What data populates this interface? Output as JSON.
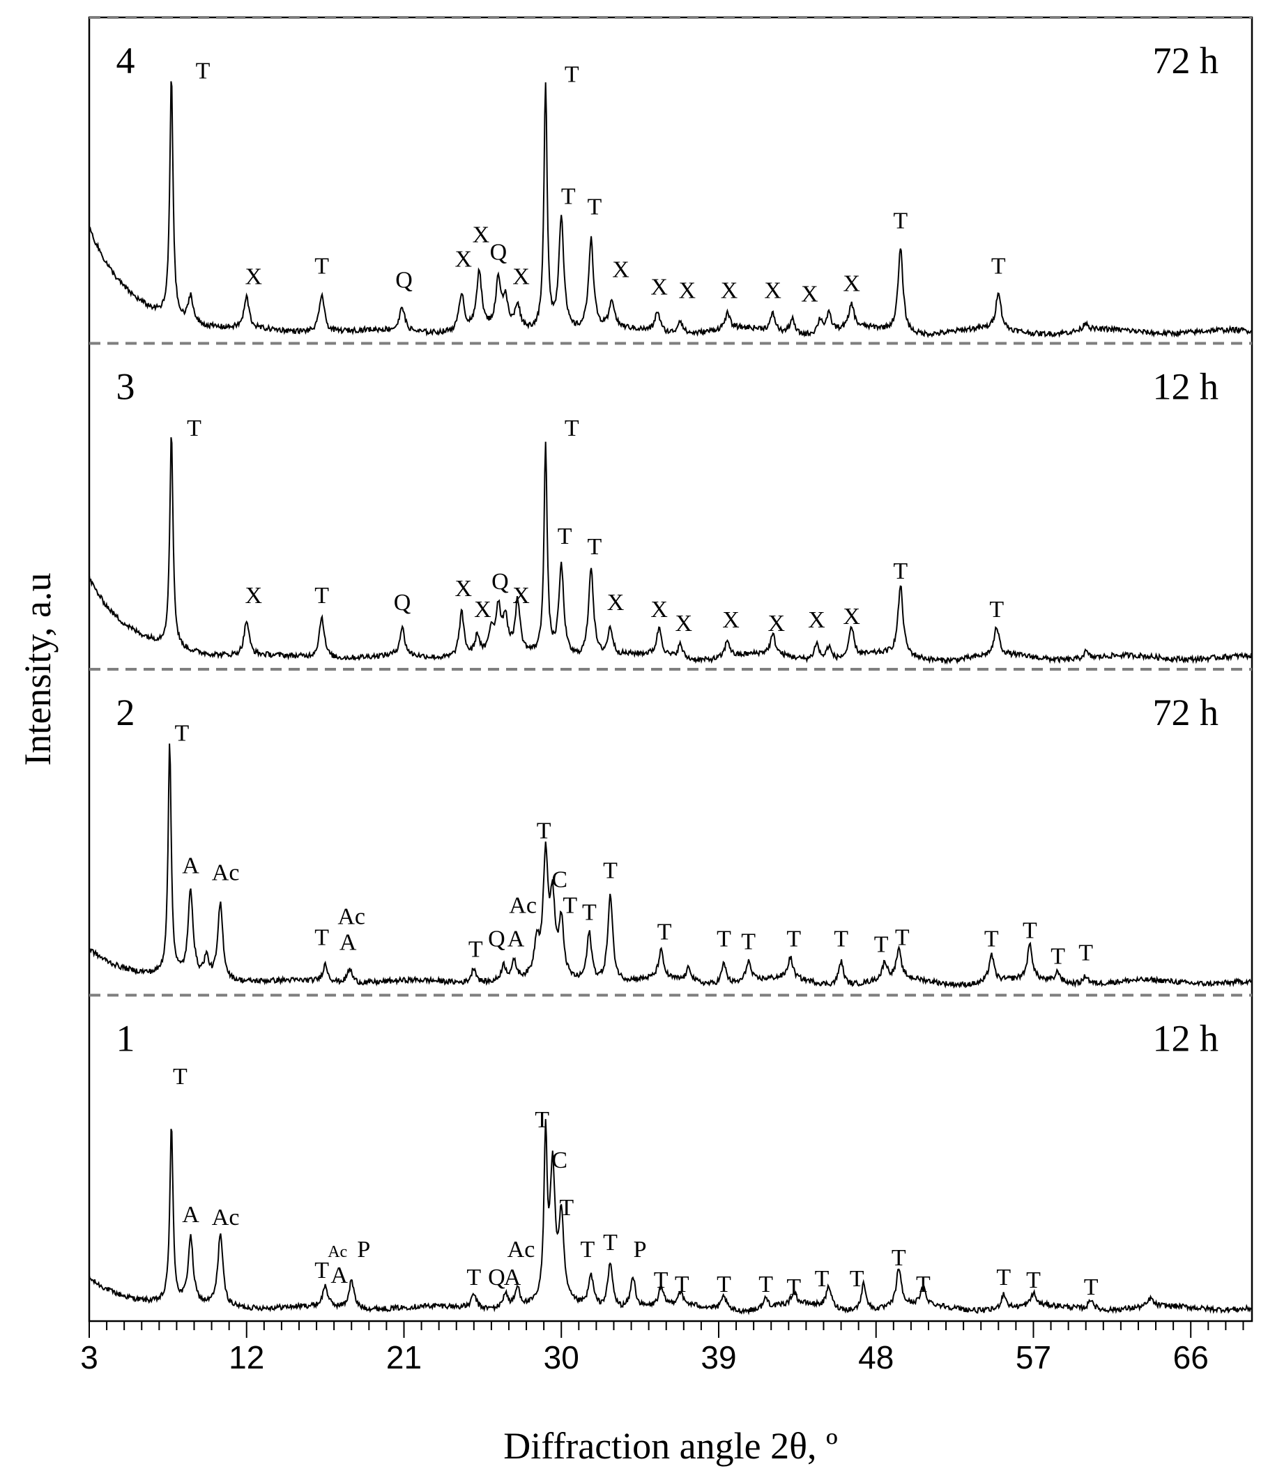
{
  "chart_data": {
    "type": "line",
    "title": "",
    "xlabel": "Diffraction angle 2θ, º",
    "ylabel": "Intensity, a.u",
    "xlim": [
      3,
      69.5
    ],
    "x_ticks": [
      3,
      12,
      21,
      30,
      39,
      48,
      57,
      66
    ],
    "x_tick_labels": [
      "3",
      "12",
      "21",
      "30",
      "39",
      "48",
      "57",
      "66"
    ],
    "minor_tick_step": 1,
    "grid": false,
    "panel_separator": "dashed",
    "series": [
      {
        "label": "1",
        "time": "12 h",
        "baseline": 0.19,
        "decay_amplitude": 0.42,
        "peaks": [
          {
            "x": 7.7,
            "h": 2.55
          },
          {
            "x": 8.8,
            "h": 0.95
          },
          {
            "x": 10.5,
            "h": 1.05
          },
          {
            "x": 16.5,
            "h": 0.3
          },
          {
            "x": 18.0,
            "h": 0.4
          },
          {
            "x": 25.0,
            "h": 0.2
          },
          {
            "x": 26.8,
            "h": 0.22
          },
          {
            "x": 27.5,
            "h": 0.28
          },
          {
            "x": 29.1,
            "h": 2.35
          },
          {
            "x": 29.5,
            "h": 1.9
          },
          {
            "x": 30.0,
            "h": 1.2
          },
          {
            "x": 31.7,
            "h": 0.45
          },
          {
            "x": 32.8,
            "h": 0.65
          },
          {
            "x": 34.1,
            "h": 0.45
          },
          {
            "x": 35.7,
            "h": 0.25
          },
          {
            "x": 36.8,
            "h": 0.18
          },
          {
            "x": 39.3,
            "h": 0.2
          },
          {
            "x": 41.7,
            "h": 0.15
          },
          {
            "x": 43.3,
            "h": 0.18
          },
          {
            "x": 45.3,
            "h": 0.3
          },
          {
            "x": 47.3,
            "h": 0.4
          },
          {
            "x": 49.3,
            "h": 0.55
          },
          {
            "x": 50.7,
            "h": 0.25
          },
          {
            "x": 55.3,
            "h": 0.22
          },
          {
            "x": 57.0,
            "h": 0.18
          },
          {
            "x": 60.3,
            "h": 0.15
          },
          {
            "x": 63.7,
            "h": 0.12
          }
        ],
        "annotations": [
          {
            "t": "T",
            "x": 8.2,
            "y": 3.4,
            "s": 34
          },
          {
            "t": "A",
            "x": 8.8,
            "y": 1.42,
            "s": 34
          },
          {
            "t": "Ac",
            "x": 10.8,
            "y": 1.38,
            "s": 34
          },
          {
            "t": "T",
            "x": 16.3,
            "y": 0.62,
            "s": 34
          },
          {
            "t": "Ac",
            "x": 17.2,
            "y": 0.92,
            "s": 24
          },
          {
            "t": "A",
            "x": 17.3,
            "y": 0.55,
            "s": 34
          },
          {
            "t": "P",
            "x": 18.7,
            "y": 0.92,
            "s": 34
          },
          {
            "t": "T",
            "x": 25.0,
            "y": 0.52,
            "s": 34
          },
          {
            "t": "Q",
            "x": 26.3,
            "y": 0.52,
            "s": 34
          },
          {
            "t": "Ac",
            "x": 27.7,
            "y": 0.92,
            "s": 34
          },
          {
            "t": "A",
            "x": 27.2,
            "y": 0.52,
            "s": 34
          },
          {
            "t": "T",
            "x": 28.9,
            "y": 2.78,
            "s": 34
          },
          {
            "t": "C",
            "x": 29.9,
            "y": 2.2,
            "s": 34
          },
          {
            "t": "T",
            "x": 30.3,
            "y": 1.52,
            "s": 34
          },
          {
            "t": "T",
            "x": 31.5,
            "y": 0.92,
            "s": 34
          },
          {
            "t": "T",
            "x": 32.8,
            "y": 1.02,
            "s": 34
          },
          {
            "t": "P",
            "x": 34.5,
            "y": 0.92,
            "s": 34
          },
          {
            "t": "T",
            "x": 35.7,
            "y": 0.48,
            "s": 34
          },
          {
            "t": "T",
            "x": 36.9,
            "y": 0.42,
            "s": 34
          },
          {
            "t": "T",
            "x": 39.3,
            "y": 0.42,
            "s": 34
          },
          {
            "t": "T",
            "x": 41.7,
            "y": 0.42,
            "s": 34
          },
          {
            "t": "T",
            "x": 43.3,
            "y": 0.38,
            "s": 34
          },
          {
            "t": "T",
            "x": 44.9,
            "y": 0.5,
            "s": 34
          },
          {
            "t": "T",
            "x": 46.9,
            "y": 0.5,
            "s": 34
          },
          {
            "t": "T",
            "x": 49.3,
            "y": 0.8,
            "s": 34
          },
          {
            "t": "T",
            "x": 50.7,
            "y": 0.42,
            "s": 34
          },
          {
            "t": "T",
            "x": 55.3,
            "y": 0.52,
            "s": 34
          },
          {
            "t": "T",
            "x": 57.0,
            "y": 0.48,
            "s": 34
          },
          {
            "t": "T",
            "x": 60.3,
            "y": 0.38,
            "s": 34
          }
        ]
      },
      {
        "label": "2",
        "time": "72 h",
        "baseline": 0.19,
        "decay_amplitude": 0.48,
        "peaks": [
          {
            "x": 7.6,
            "h": 3.3
          },
          {
            "x": 8.8,
            "h": 1.25
          },
          {
            "x": 9.7,
            "h": 0.3
          },
          {
            "x": 10.5,
            "h": 1.1
          },
          {
            "x": 16.5,
            "h": 0.25
          },
          {
            "x": 17.9,
            "h": 0.2
          },
          {
            "x": 25.0,
            "h": 0.22
          },
          {
            "x": 26.7,
            "h": 0.22
          },
          {
            "x": 27.3,
            "h": 0.25
          },
          {
            "x": 28.6,
            "h": 0.5
          },
          {
            "x": 29.1,
            "h": 1.7
          },
          {
            "x": 29.5,
            "h": 1.05
          },
          {
            "x": 30.0,
            "h": 0.8
          },
          {
            "x": 31.6,
            "h": 0.7
          },
          {
            "x": 32.8,
            "h": 1.25
          },
          {
            "x": 35.7,
            "h": 0.4
          },
          {
            "x": 37.3,
            "h": 0.2
          },
          {
            "x": 39.3,
            "h": 0.3
          },
          {
            "x": 40.7,
            "h": 0.3
          },
          {
            "x": 43.1,
            "h": 0.3
          },
          {
            "x": 46.0,
            "h": 0.35
          },
          {
            "x": 48.5,
            "h": 0.25
          },
          {
            "x": 49.3,
            "h": 0.4
          },
          {
            "x": 54.6,
            "h": 0.4
          },
          {
            "x": 56.8,
            "h": 0.5
          },
          {
            "x": 58.4,
            "h": 0.15
          },
          {
            "x": 60.0,
            "h": 0.12
          }
        ],
        "annotations": [
          {
            "t": "T",
            "x": 8.3,
            "y": 3.65,
            "s": 34
          },
          {
            "t": "A",
            "x": 8.8,
            "y": 1.75,
            "s": 34
          },
          {
            "t": "Ac",
            "x": 10.8,
            "y": 1.65,
            "s": 34
          },
          {
            "t": "T",
            "x": 16.3,
            "y": 0.72,
            "s": 34
          },
          {
            "t": "Ac",
            "x": 18.0,
            "y": 1.02,
            "s": 34
          },
          {
            "t": "A",
            "x": 17.8,
            "y": 0.65,
            "s": 34
          },
          {
            "t": "T",
            "x": 25.1,
            "y": 0.55,
            "s": 34
          },
          {
            "t": "Q",
            "x": 26.3,
            "y": 0.7,
            "s": 34
          },
          {
            "t": "Ac",
            "x": 27.8,
            "y": 1.18,
            "s": 34
          },
          {
            "t": "A",
            "x": 27.4,
            "y": 0.7,
            "s": 34
          },
          {
            "t": "T",
            "x": 29.0,
            "y": 2.25,
            "s": 34
          },
          {
            "t": "C",
            "x": 29.9,
            "y": 1.55,
            "s": 34
          },
          {
            "t": "T",
            "x": 30.5,
            "y": 1.18,
            "s": 34
          },
          {
            "t": "T",
            "x": 31.6,
            "y": 1.08,
            "s": 34
          },
          {
            "t": "T",
            "x": 32.8,
            "y": 1.68,
            "s": 34
          },
          {
            "t": "T",
            "x": 35.9,
            "y": 0.8,
            "s": 34
          },
          {
            "t": "T",
            "x": 39.3,
            "y": 0.7,
            "s": 34
          },
          {
            "t": "T",
            "x": 40.7,
            "y": 0.66,
            "s": 34
          },
          {
            "t": "T",
            "x": 43.3,
            "y": 0.7,
            "s": 34
          },
          {
            "t": "T",
            "x": 46.0,
            "y": 0.7,
            "s": 34
          },
          {
            "t": "T",
            "x": 48.3,
            "y": 0.62,
            "s": 34
          },
          {
            "t": "T",
            "x": 49.5,
            "y": 0.72,
            "s": 34
          },
          {
            "t": "T",
            "x": 54.6,
            "y": 0.7,
            "s": 34
          },
          {
            "t": "T",
            "x": 56.8,
            "y": 0.82,
            "s": 34
          },
          {
            "t": "T",
            "x": 58.4,
            "y": 0.45,
            "s": 34
          },
          {
            "t": "T",
            "x": 60.0,
            "y": 0.5,
            "s": 34
          }
        ]
      },
      {
        "label": "3",
        "time": "12 h",
        "baseline": 0.17,
        "decay_amplitude": 1.15,
        "peaks": [
          {
            "x": 7.7,
            "h": 3.1
          },
          {
            "x": 12.0,
            "h": 0.5
          },
          {
            "x": 16.3,
            "h": 0.6
          },
          {
            "x": 20.9,
            "h": 0.4
          },
          {
            "x": 24.3,
            "h": 0.65
          },
          {
            "x": 25.2,
            "h": 0.3
          },
          {
            "x": 26.0,
            "h": 0.35
          },
          {
            "x": 26.4,
            "h": 0.65
          },
          {
            "x": 26.8,
            "h": 0.5
          },
          {
            "x": 27.5,
            "h": 0.75
          },
          {
            "x": 29.1,
            "h": 3.0
          },
          {
            "x": 30.0,
            "h": 1.3
          },
          {
            "x": 31.7,
            "h": 1.3
          },
          {
            "x": 32.8,
            "h": 0.4
          },
          {
            "x": 35.6,
            "h": 0.4
          },
          {
            "x": 36.8,
            "h": 0.2
          },
          {
            "x": 39.5,
            "h": 0.25
          },
          {
            "x": 42.1,
            "h": 0.28
          },
          {
            "x": 44.6,
            "h": 0.25
          },
          {
            "x": 45.3,
            "h": 0.2
          },
          {
            "x": 46.6,
            "h": 0.42
          },
          {
            "x": 49.4,
            "h": 1.0
          },
          {
            "x": 54.9,
            "h": 0.4
          },
          {
            "x": 60.0,
            "h": 0.1
          }
        ],
        "annotations": [
          {
            "t": "T",
            "x": 9.0,
            "y": 3.35,
            "s": 34
          },
          {
            "t": "X",
            "x": 12.4,
            "y": 0.95,
            "s": 34
          },
          {
            "t": "T",
            "x": 16.3,
            "y": 0.95,
            "s": 34
          },
          {
            "t": "Q",
            "x": 20.9,
            "y": 0.85,
            "s": 34
          },
          {
            "t": "X",
            "x": 24.4,
            "y": 1.05,
            "s": 34
          },
          {
            "t": "X",
            "x": 25.5,
            "y": 0.75,
            "s": 34
          },
          {
            "t": "Q",
            "x": 26.5,
            "y": 1.15,
            "s": 34
          },
          {
            "t": "X",
            "x": 27.7,
            "y": 0.95,
            "s": 34
          },
          {
            "t": "T",
            "x": 30.6,
            "y": 3.35,
            "s": 34
          },
          {
            "t": "T",
            "x": 30.2,
            "y": 1.8,
            "s": 34
          },
          {
            "t": "T",
            "x": 31.9,
            "y": 1.65,
            "s": 34
          },
          {
            "t": "X",
            "x": 33.1,
            "y": 0.85,
            "s": 34
          },
          {
            "t": "X",
            "x": 35.6,
            "y": 0.75,
            "s": 34
          },
          {
            "t": "X",
            "x": 37.0,
            "y": 0.55,
            "s": 34
          },
          {
            "t": "X",
            "x": 39.7,
            "y": 0.6,
            "s": 34
          },
          {
            "t": "X",
            "x": 42.3,
            "y": 0.55,
            "s": 34
          },
          {
            "t": "X",
            "x": 44.6,
            "y": 0.6,
            "s": 34
          },
          {
            "t": "X",
            "x": 46.6,
            "y": 0.65,
            "s": 34
          },
          {
            "t": "T",
            "x": 49.4,
            "y": 1.3,
            "s": 34
          },
          {
            "t": "T",
            "x": 54.9,
            "y": 0.75,
            "s": 34
          }
        ]
      },
      {
        "label": "4",
        "time": "72 h",
        "baseline": 0.17,
        "decay_amplitude": 1.5,
        "peaks": [
          {
            "x": 7.7,
            "h": 3.5
          },
          {
            "x": 8.8,
            "h": 0.4
          },
          {
            "x": 12.0,
            "h": 0.45
          },
          {
            "x": 16.3,
            "h": 0.55
          },
          {
            "x": 20.9,
            "h": 0.35
          },
          {
            "x": 24.3,
            "h": 0.55
          },
          {
            "x": 25.3,
            "h": 0.85
          },
          {
            "x": 26.4,
            "h": 0.7
          },
          {
            "x": 26.8,
            "h": 0.4
          },
          {
            "x": 27.5,
            "h": 0.35
          },
          {
            "x": 29.1,
            "h": 3.55
          },
          {
            "x": 30.0,
            "h": 1.65
          },
          {
            "x": 31.7,
            "h": 1.3
          },
          {
            "x": 32.9,
            "h": 0.4
          },
          {
            "x": 35.5,
            "h": 0.3
          },
          {
            "x": 36.8,
            "h": 0.2
          },
          {
            "x": 39.5,
            "h": 0.22
          },
          {
            "x": 42.1,
            "h": 0.25
          },
          {
            "x": 43.2,
            "h": 0.22
          },
          {
            "x": 44.8,
            "h": 0.2
          },
          {
            "x": 45.3,
            "h": 0.25
          },
          {
            "x": 46.6,
            "h": 0.35
          },
          {
            "x": 49.4,
            "h": 1.2
          },
          {
            "x": 55.0,
            "h": 0.55
          },
          {
            "x": 60.0,
            "h": 0.12
          }
        ],
        "annotations": [
          {
            "t": "T",
            "x": 9.5,
            "y": 3.8,
            "s": 34
          },
          {
            "t": "X",
            "x": 12.4,
            "y": 0.85,
            "s": 34
          },
          {
            "t": "T",
            "x": 16.3,
            "y": 1.0,
            "s": 34
          },
          {
            "t": "Q",
            "x": 21.0,
            "y": 0.8,
            "s": 34
          },
          {
            "t": "X",
            "x": 24.4,
            "y": 1.1,
            "s": 34
          },
          {
            "t": "X",
            "x": 25.4,
            "y": 1.45,
            "s": 34
          },
          {
            "t": "Q",
            "x": 26.4,
            "y": 1.2,
            "s": 34
          },
          {
            "t": "X",
            "x": 27.7,
            "y": 0.85,
            "s": 34
          },
          {
            "t": "T",
            "x": 30.6,
            "y": 3.75,
            "s": 34
          },
          {
            "t": "T",
            "x": 30.4,
            "y": 2.0,
            "s": 34
          },
          {
            "t": "T",
            "x": 31.9,
            "y": 1.85,
            "s": 34
          },
          {
            "t": "X",
            "x": 33.4,
            "y": 0.95,
            "s": 34
          },
          {
            "t": "X",
            "x": 35.6,
            "y": 0.7,
            "s": 34
          },
          {
            "t": "X",
            "x": 37.2,
            "y": 0.65,
            "s": 34
          },
          {
            "t": "X",
            "x": 39.6,
            "y": 0.65,
            "s": 34
          },
          {
            "t": "X",
            "x": 42.1,
            "y": 0.65,
            "s": 34
          },
          {
            "t": "X",
            "x": 44.2,
            "y": 0.6,
            "s": 34
          },
          {
            "t": "X",
            "x": 46.6,
            "y": 0.75,
            "s": 34
          },
          {
            "t": "T",
            "x": 49.4,
            "y": 1.65,
            "s": 34
          },
          {
            "t": "T",
            "x": 55.0,
            "y": 1.0,
            "s": 34
          }
        ]
      }
    ]
  }
}
